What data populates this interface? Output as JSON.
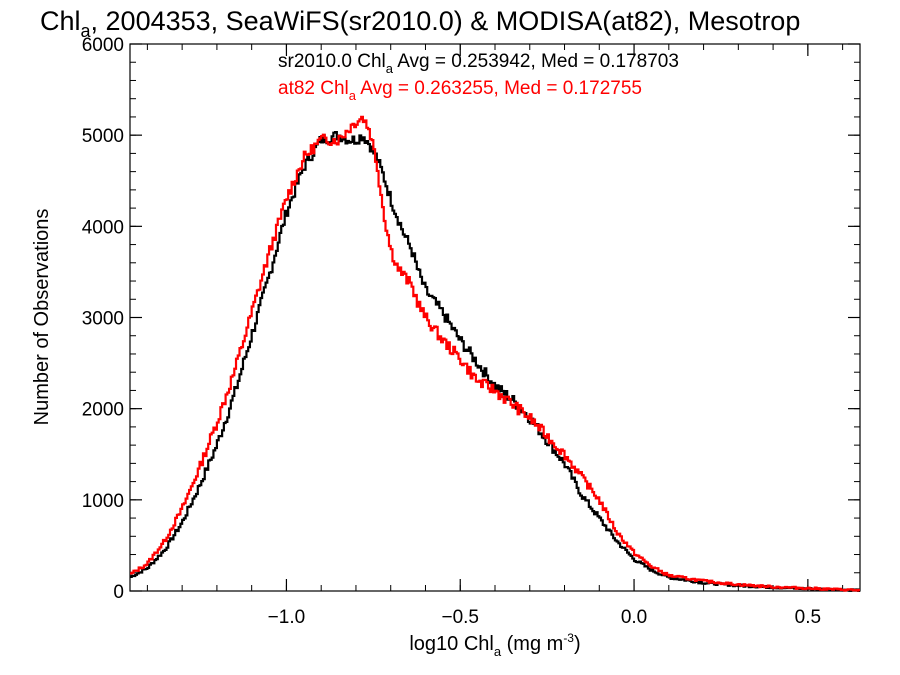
{
  "chart_data": {
    "type": "line",
    "title_main": "Chl",
    "title_sub": "a",
    "title_rest": ", 2004353, SeaWiFS(sr2010.0) & MODISA(at82), Mesotrop",
    "xlabel_main": "log10 Chl",
    "xlabel_sub": "a",
    "xlabel_unit": " (mg m",
    "xlabel_sup": "-3",
    "xlabel_close": ")",
    "ylabel": "Number of Observations",
    "xlim": [
      -1.45,
      0.65
    ],
    "ylim": [
      0,
      6000
    ],
    "xticks": [
      -1.0,
      -0.5,
      0.0,
      0.5
    ],
    "xtick_labels": [
      "−1.0",
      "−0.5",
      "0.0",
      "0.5"
    ],
    "yticks": [
      0,
      1000,
      2000,
      3000,
      4000,
      5000,
      6000
    ],
    "ytick_labels": [
      "0",
      "1000",
      "2000",
      "3000",
      "4000",
      "5000",
      "6000"
    ],
    "grid": false,
    "series": [
      {
        "name": "sr2010.0",
        "color": "#000000",
        "stat_prefix": "sr2010.0 Chl",
        "stat_sub": "a",
        "stat_rest": " Avg = 0.253942, Med = 0.178703",
        "x": [
          -1.45,
          -1.4,
          -1.35,
          -1.3,
          -1.25,
          -1.2,
          -1.15,
          -1.1,
          -1.05,
          -1.0,
          -0.95,
          -0.9,
          -0.85,
          -0.82,
          -0.8,
          -0.78,
          -0.76,
          -0.74,
          -0.72,
          -0.7,
          -0.68,
          -0.66,
          -0.64,
          -0.62,
          -0.6,
          -0.55,
          -0.5,
          -0.45,
          -0.4,
          -0.35,
          -0.3,
          -0.25,
          -0.2,
          -0.15,
          -0.1,
          -0.05,
          0.0,
          0.05,
          0.1,
          0.2,
          0.3,
          0.4,
          0.5,
          0.6,
          0.65
        ],
        "y": [
          150,
          250,
          450,
          750,
          1150,
          1600,
          2150,
          2800,
          3450,
          4150,
          4650,
          4950,
          5000,
          4950,
          4950,
          5000,
          4900,
          4750,
          4550,
          4300,
          4100,
          3900,
          3750,
          3500,
          3300,
          3050,
          2750,
          2500,
          2250,
          2100,
          1900,
          1650,
          1400,
          1050,
          800,
          550,
          350,
          230,
          150,
          90,
          60,
          40,
          25,
          15,
          10
        ]
      },
      {
        "name": "at82",
        "color": "#ff0000",
        "stat_prefix": "at82 Chl",
        "stat_sub": "a",
        "stat_rest": " Avg = 0.263255, Med = 0.172755",
        "x": [
          -1.45,
          -1.4,
          -1.35,
          -1.3,
          -1.25,
          -1.2,
          -1.15,
          -1.1,
          -1.05,
          -1.0,
          -0.95,
          -0.9,
          -0.85,
          -0.8,
          -0.78,
          -0.76,
          -0.74,
          -0.72,
          -0.7,
          -0.68,
          -0.66,
          -0.64,
          -0.62,
          -0.6,
          -0.55,
          -0.5,
          -0.45,
          -0.4,
          -0.35,
          -0.3,
          -0.25,
          -0.2,
          -0.15,
          -0.1,
          -0.05,
          0.0,
          0.05,
          0.1,
          0.2,
          0.3,
          0.4,
          0.5,
          0.6,
          0.65
        ],
        "y": [
          180,
          300,
          550,
          900,
          1350,
          1850,
          2400,
          3050,
          3700,
          4300,
          4750,
          4950,
          4950,
          5150,
          5200,
          5050,
          4700,
          4150,
          3750,
          3550,
          3450,
          3350,
          3150,
          3000,
          2750,
          2550,
          2300,
          2200,
          2050,
          1900,
          1700,
          1500,
          1250,
          1000,
          650,
          420,
          270,
          170,
          110,
          70,
          45,
          30,
          15,
          8
        ]
      }
    ]
  }
}
